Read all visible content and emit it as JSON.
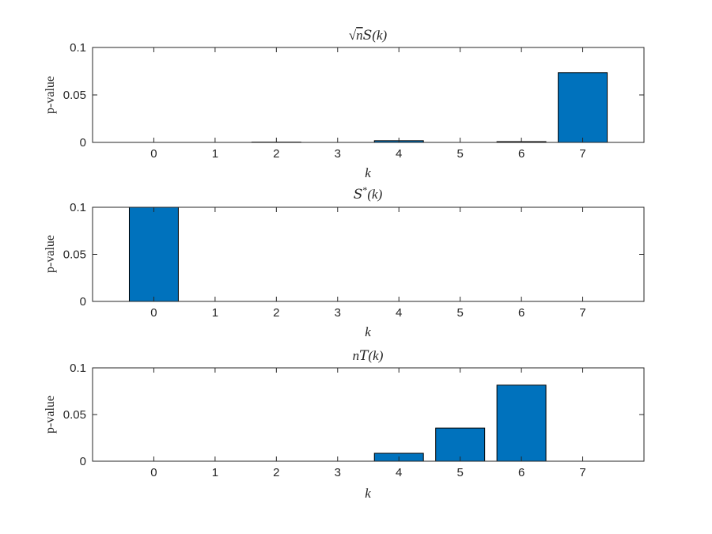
{
  "chart_data": [
    {
      "type": "bar",
      "title": "√nS(k)",
      "title_parts": {
        "root": "n",
        "cal": "S",
        "arg": "(k)"
      },
      "xlabel": "k",
      "ylabel": "p-value",
      "categories": [
        0,
        1,
        2,
        3,
        4,
        5,
        6,
        7
      ],
      "values": [
        0.0,
        0.0,
        0.0003,
        0.0,
        0.0018,
        0.0,
        0.0008,
        0.0735
      ],
      "xlim": [
        -1,
        8
      ],
      "ylim": [
        0,
        0.1
      ],
      "yticks": [
        "0",
        "0.05",
        "0.1"
      ],
      "bar_color": "#0072BD"
    },
    {
      "type": "bar",
      "title": "S*(k)",
      "title_parts": {
        "cal": "S",
        "sup": "*",
        "arg": "(k)"
      },
      "xlabel": "k",
      "ylabel": "p-value",
      "categories": [
        0,
        1,
        2,
        3,
        4,
        5,
        6,
        7
      ],
      "values": [
        0.1,
        0.0,
        0.0,
        0.0,
        0.0,
        0.0,
        0.0,
        0.0
      ],
      "xlim": [
        -1,
        8
      ],
      "ylim": [
        0,
        0.1
      ],
      "yticks": [
        "0",
        "0.05",
        "0.1"
      ],
      "bar_color": "#0072BD"
    },
    {
      "type": "bar",
      "title": "nT(k)",
      "title_parts": {
        "pre": "n",
        "cal": "T",
        "arg": "(k)"
      },
      "xlabel": "k",
      "ylabel": "p-value",
      "categories": [
        0,
        1,
        2,
        3,
        4,
        5,
        6,
        7
      ],
      "values": [
        0.0,
        0.0,
        0.0,
        0.0,
        0.0085,
        0.0355,
        0.0815,
        0.0
      ],
      "xlim": [
        -1,
        8
      ],
      "ylim": [
        0,
        0.1
      ],
      "yticks": [
        "0",
        "0.05",
        "0.1"
      ],
      "bar_color": "#0072BD"
    }
  ]
}
